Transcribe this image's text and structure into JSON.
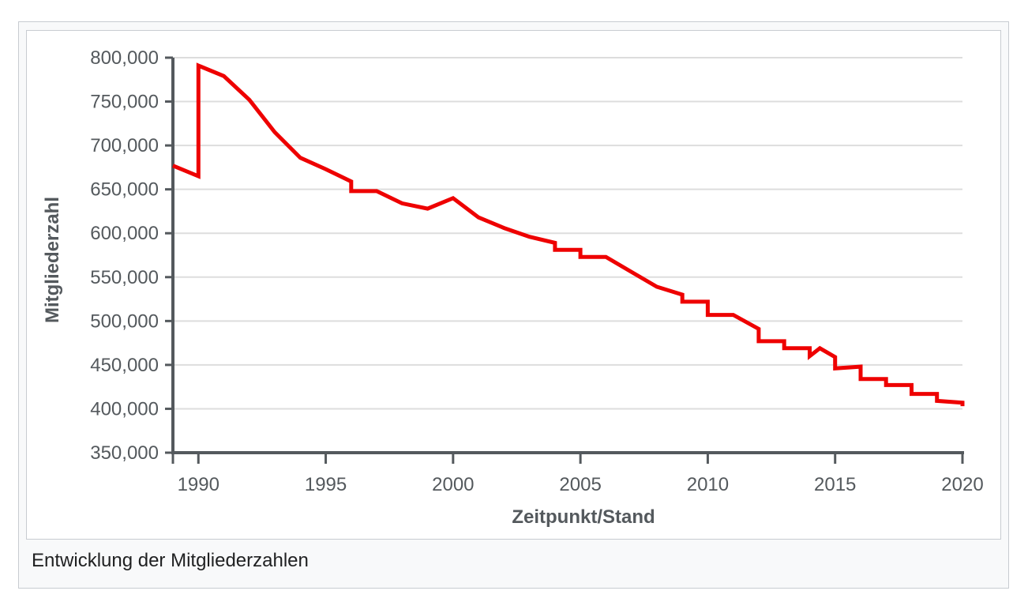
{
  "caption": "Entwicklung der Mitgliederzahlen",
  "colors": {
    "line": "#ee0000",
    "axis": "#54595d",
    "grid": "#dddddd",
    "frame_border": "#c8ccd1",
    "frame_background": "#f8f9fa"
  },
  "chart_data": {
    "type": "line",
    "title": "",
    "xlabel": "Zeitpunkt/Stand",
    "ylabel": "Mitgliederzahl",
    "xlim": [
      1989,
      2020
    ],
    "ylim": [
      350000,
      800000
    ],
    "grid": true,
    "legend": "none",
    "x_ticks": [
      1990,
      1995,
      2000,
      2005,
      2010,
      2015,
      2020
    ],
    "x_tick_labels": [
      "1990",
      "1995",
      "2000",
      "2005",
      "2010",
      "2015",
      "2020"
    ],
    "y_ticks": [
      350000,
      400000,
      450000,
      500000,
      550000,
      600000,
      650000,
      700000,
      750000,
      800000
    ],
    "y_tick_labels": [
      "350,000",
      "400,000",
      "450,000",
      "500,000",
      "550,000",
      "600,000",
      "650,000",
      "700,000",
      "750,000",
      "800,000"
    ],
    "series": [
      {
        "x": [
          1989,
          1990,
          1990,
          1991,
          1992,
          1993,
          1994,
          1995,
          1996,
          1996,
          1997,
          1998,
          1999,
          2000,
          2001,
          2002,
          2003,
          2004,
          2004,
          2005,
          2005,
          2006,
          2007,
          2008,
          2009,
          2009,
          2010,
          2010,
          2011,
          2012,
          2012,
          2013,
          2013,
          2014,
          2014,
          2014.4,
          2015,
          2015,
          2016,
          2016,
          2017,
          2017,
          2018,
          2018,
          2019,
          2019,
          2020,
          2020
        ],
        "y": [
          677000,
          665000,
          791000,
          779000,
          752000,
          715000,
          686000,
          673000,
          659000,
          648000,
          648000,
          634000,
          628000,
          640000,
          618000,
          606000,
          596000,
          589000,
          581000,
          581000,
          573000,
          573000,
          556000,
          539000,
          530000,
          522000,
          522000,
          507000,
          507000,
          491000,
          477000,
          477000,
          469000,
          469000,
          460000,
          469000,
          459000,
          446000,
          448000,
          434000,
          434000,
          427000,
          427000,
          417000,
          417000,
          409000,
          407000,
          403000
        ]
      }
    ]
  }
}
